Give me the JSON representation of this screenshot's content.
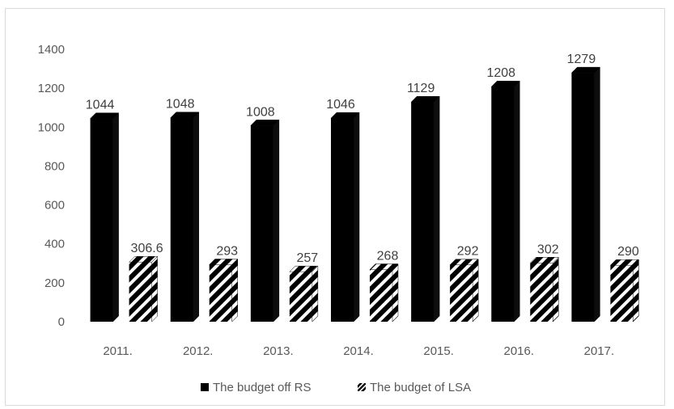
{
  "chart_data": {
    "type": "bar",
    "bar_style": "3d-cylinder-like columns",
    "categories": [
      "2011.",
      "2012.",
      "2013.",
      "2014.",
      "2015.",
      "2016.",
      "2017."
    ],
    "series": [
      {
        "name": "The budget off RS",
        "values": [
          1044,
          1048,
          1008,
          1046,
          1129,
          1208,
          1279
        ],
        "labels": [
          "1044",
          "1048",
          "1008",
          "1046",
          "1129",
          "1208",
          "1279"
        ],
        "fill": "solid-black"
      },
      {
        "name": "The budget of LSA",
        "values": [
          306.6,
          293,
          257,
          268,
          292,
          302,
          290
        ],
        "labels": [
          "306.6",
          "293",
          "257",
          "268",
          "292",
          "302",
          "290"
        ],
        "fill": "black-white-diagonal-stripes"
      }
    ],
    "ylim": [
      0,
      1400
    ],
    "yticks": [
      "0",
      "200",
      "400",
      "600",
      "800",
      "1000",
      "1200",
      "1400"
    ],
    "grid": false,
    "legend_position": "bottom",
    "colors": {
      "series1": "#000000",
      "series2": "#000000",
      "stripe": "#ffffff",
      "text": "#595959",
      "border": "#d9d9d9"
    }
  }
}
